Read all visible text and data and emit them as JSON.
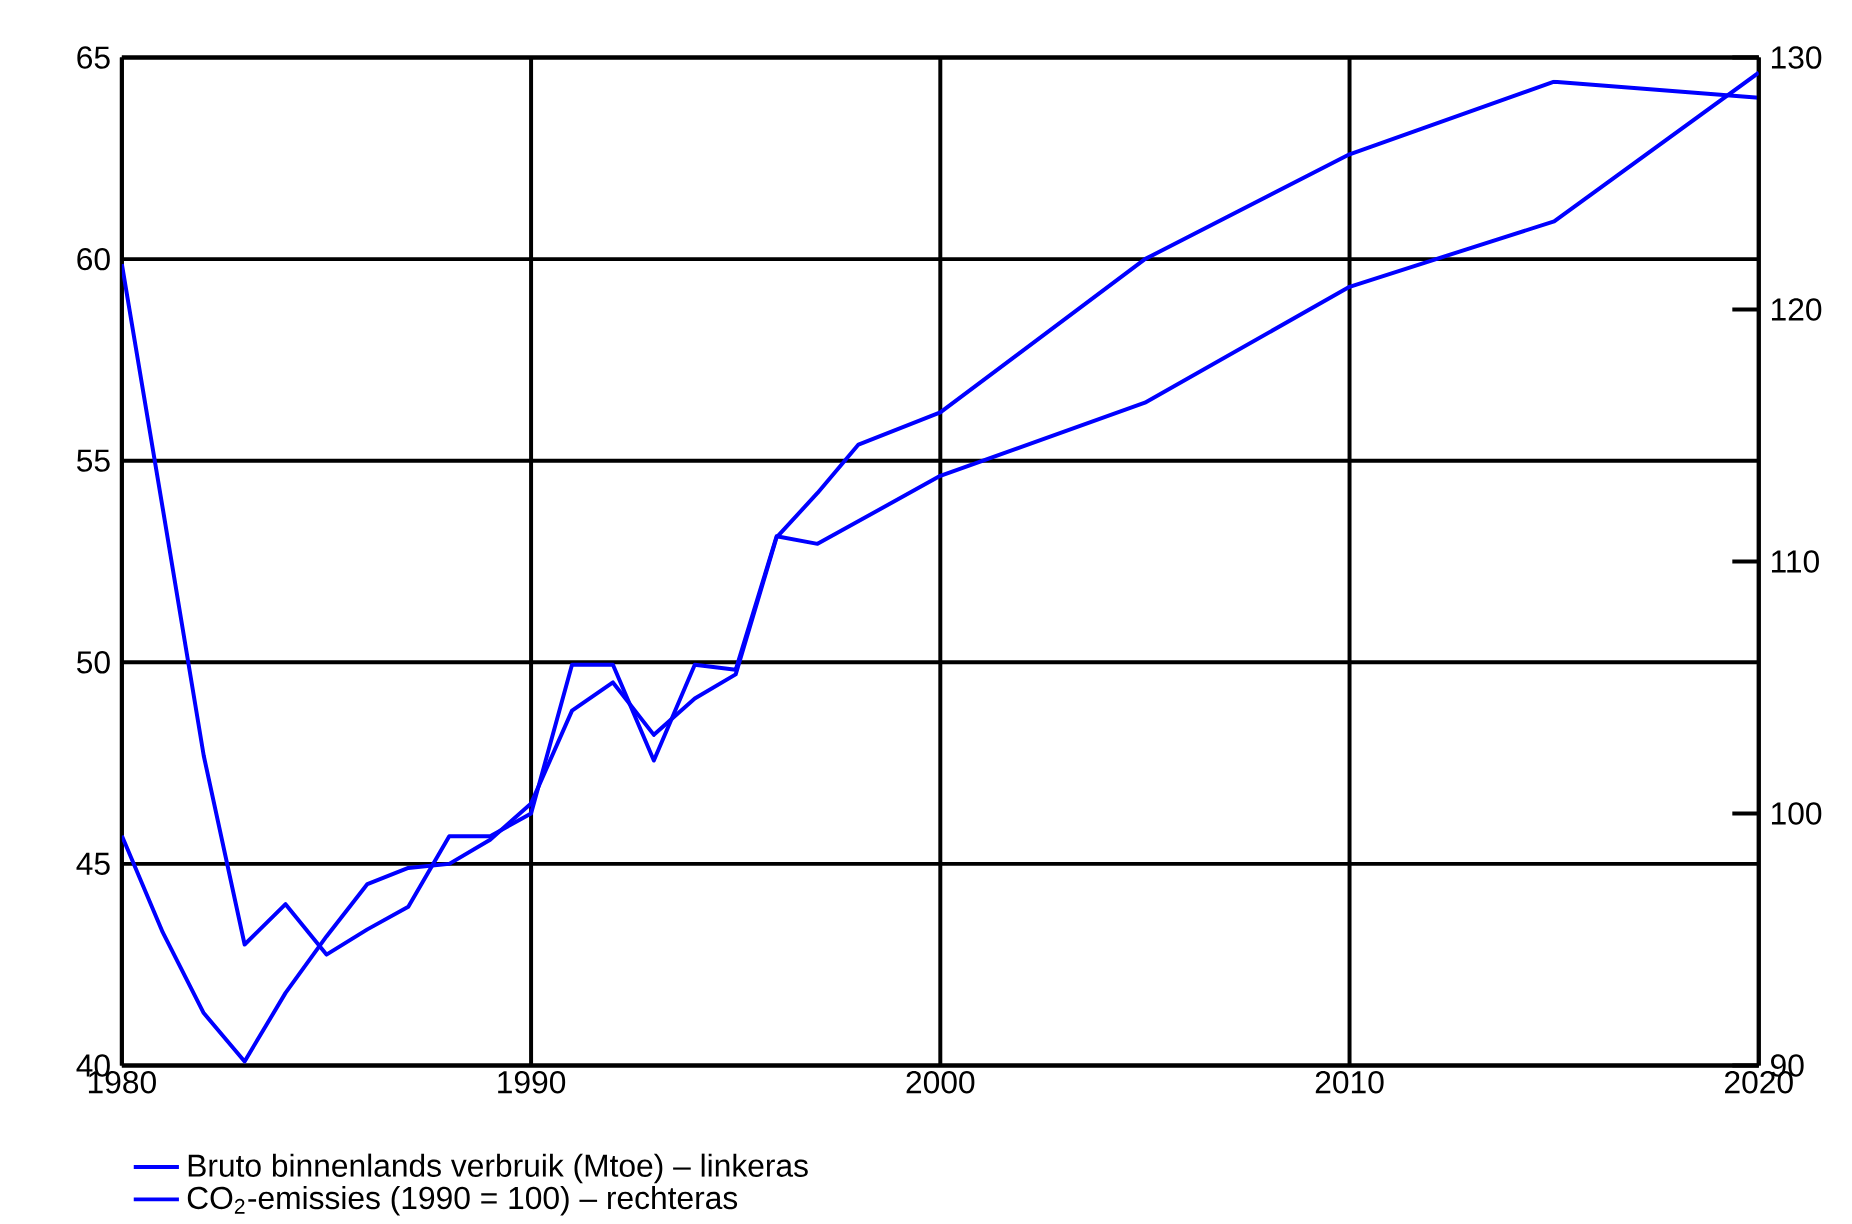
{
  "chart_data": {
    "type": "line",
    "xlim": [
      1980,
      2020
    ],
    "xticks": [
      1980,
      1990,
      2000,
      2010,
      2020
    ],
    "ylim": [
      40,
      65
    ],
    "yticks": [
      40,
      45,
      50,
      55,
      60,
      65
    ],
    "y2lim": [
      90,
      130
    ],
    "y2ticks": [
      90,
      100,
      110,
      120,
      130
    ],
    "grid": true,
    "legend": "bottom",
    "series": [
      {
        "name": "Bruto binnenlands verbruik (Mtoe) – linkeras",
        "color": "#0000ff",
        "x": [
          1980,
          1981,
          1982,
          1983,
          1984,
          1985,
          1986,
          1987,
          1988,
          1989,
          1990,
          1991,
          1992,
          1993,
          1994,
          1995,
          1996,
          1997,
          1998,
          2000,
          2005,
          2010,
          2015,
          2020
        ],
        "values": [
          45.7,
          43.3,
          41.3,
          40.1,
          41.8,
          43.2,
          44.5,
          44.9,
          45.0,
          45.6,
          46.5,
          48.8,
          49.5,
          48.2,
          49.1,
          49.7,
          53.1,
          54.2,
          55.4,
          56.2,
          60.0,
          62.6,
          64.4,
          64.0
        ]
      },
      {
        "name": "CO$_{2}$-emissies (1990 = 100) – rechteras",
        "color": "#0000ff",
        "axis": "y2",
        "x": [
          1980,
          1981,
          1982,
          1983,
          1984,
          1985,
          1986,
          1987,
          1988,
          1989,
          1990,
          1991,
          1992,
          1993,
          1994,
          1995,
          1996,
          1997,
          2000,
          2005,
          2010,
          2015,
          2020
        ],
        "values": [
          121.8,
          112.1,
          102.3,
          94.8,
          96.4,
          94.4,
          95.4,
          96.3,
          99.1,
          99.1,
          100,
          105.9,
          105.9,
          102.1,
          105.9,
          105.7,
          111.0,
          110.7,
          113.4,
          116.3,
          120.9,
          123.5,
          129.4
        ]
      }
    ]
  }
}
